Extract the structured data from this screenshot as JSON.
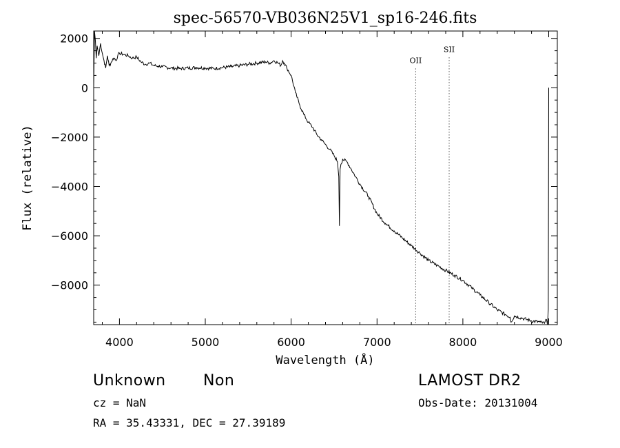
{
  "chart_data": {
    "type": "line",
    "title": "spec-56570-VB036N25V1_sp16-246.fits",
    "xlabel": "Wavelength (Å)",
    "ylabel": "Flux (relative)",
    "xlim": [
      3700,
      9100
    ],
    "ylim": [
      -9600,
      2300
    ],
    "xticks": [
      4000,
      5000,
      6000,
      7000,
      8000,
      9000
    ],
    "xtick_labels": [
      "4000",
      "5000",
      "6000",
      "7000",
      "8000",
      "9000"
    ],
    "yticks": [
      2000,
      0,
      -2000,
      -4000,
      -6000,
      -8000
    ],
    "ytick_labels": [
      "2000",
      "0",
      "−2000",
      "−4000",
      "−6000",
      "−8000"
    ],
    "grid": false,
    "series": [
      {
        "color": "#000000",
        "x": [
          3700,
          3710,
          3720,
          3730,
          3740,
          3750,
          3760,
          3780,
          3800,
          3820,
          3840,
          3860,
          3880,
          3900,
          3920,
          3940,
          3960,
          3980,
          4000,
          4050,
          4100,
          4150,
          4200,
          4250,
          4300,
          4350,
          4400,
          4450,
          4500,
          4600,
          4700,
          4800,
          4900,
          5000,
          5100,
          5200,
          5300,
          5400,
          5500,
          5600,
          5700,
          5750,
          5800,
          5850,
          5880,
          5900,
          5920,
          5950,
          6000,
          6050,
          6100,
          6150,
          6200,
          6250,
          6300,
          6350,
          6400,
          6450,
          6500,
          6540,
          6555,
          6562,
          6570,
          6580,
          6600,
          6650,
          6700,
          6750,
          6800,
          6900,
          7000,
          7100,
          7200,
          7300,
          7400,
          7500,
          7600,
          7700,
          7800,
          7900,
          8000,
          8100,
          8200,
          8300,
          8400,
          8500,
          8550,
          8560,
          8600,
          8700,
          8800,
          8900,
          8950,
          8975,
          8985,
          8995,
          9000
        ],
        "y": [
          0,
          2300,
          1900,
          1200,
          1700,
          1500,
          1300,
          1800,
          1400,
          1100,
          800,
          1300,
          900,
          1000,
          1150,
          1200,
          1100,
          1300,
          1400,
          1350,
          1300,
          1200,
          1250,
          1050,
          950,
          1000,
          900,
          880,
          850,
          800,
          780,
          800,
          820,
          800,
          780,
          820,
          850,
          900,
          950,
          1000,
          1050,
          1000,
          1100,
          1000,
          900,
          1100,
          1000,
          800,
          500,
          -200,
          -700,
          -1100,
          -1400,
          -1600,
          -1900,
          -2100,
          -2300,
          -2500,
          -2750,
          -3000,
          -3600,
          -5600,
          -3300,
          -3100,
          -2900,
          -3000,
          -3300,
          -3600,
          -3900,
          -4400,
          -5100,
          -5500,
          -5800,
          -6100,
          -6400,
          -6700,
          -7000,
          -7200,
          -7400,
          -7600,
          -7800,
          -8100,
          -8400,
          -8700,
          -9000,
          -9200,
          -9300,
          -9500,
          -9250,
          -9350,
          -9450,
          -9500,
          -9550,
          -9400,
          -9600,
          -9000,
          0
        ]
      }
    ],
    "annotations": [
      {
        "text": "OII",
        "x": 7450,
        "label_y": 1000
      },
      {
        "text": "SII",
        "x": 7840,
        "label_y": 1450
      }
    ]
  },
  "info": {
    "object_class": "Unknown",
    "subclass": "Non",
    "cz": "cz = NaN",
    "radec": "RA =  35.43331, DEC =  27.39189",
    "survey": "LAMOST DR2",
    "obs_date": "Obs-Date: 20131004"
  }
}
